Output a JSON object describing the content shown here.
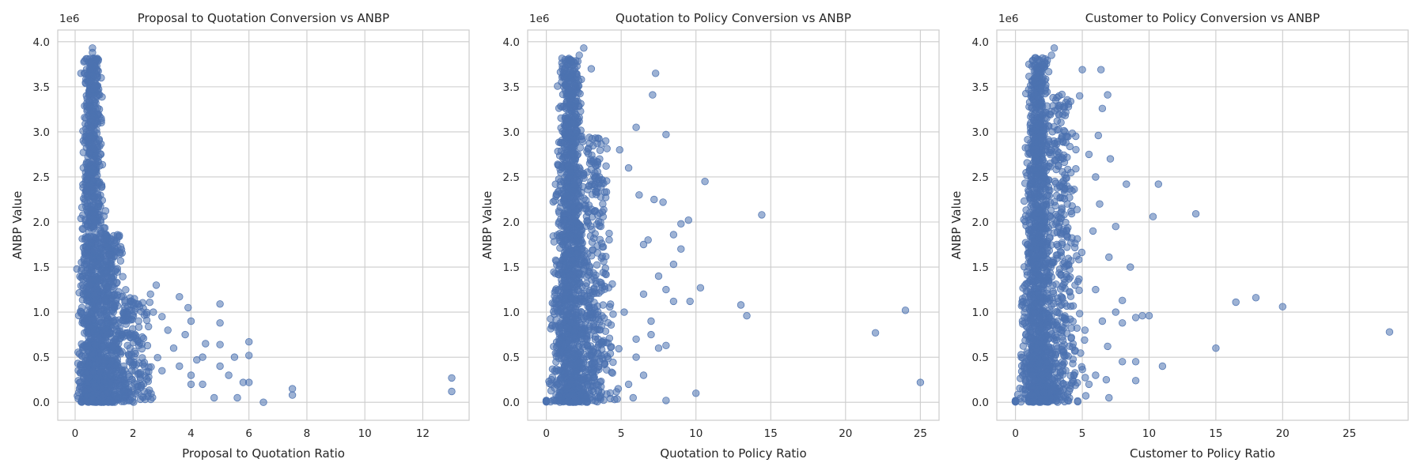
{
  "chart_data": [
    {
      "type": "scatter",
      "title": "Proposal to Quotation Conversion vs ANBP",
      "xlabel": "Proposal to Quotation Ratio",
      "ylabel": "ANBP Value",
      "y_offset_label": "1e6",
      "xlim": [
        -0.6,
        13.6
      ],
      "ylim": [
        -0.2,
        4.13
      ],
      "x_ticks": [
        0,
        2,
        4,
        6,
        8,
        10,
        12
      ],
      "y_ticks": [
        0.0,
        0.5,
        1.0,
        1.5,
        2.0,
        2.5,
        3.0,
        3.5,
        4.0
      ],
      "grid": true,
      "marker_color": "#4c72b0",
      "dense_clusters": [
        {
          "x_center": 0.6,
          "x_spread": 0.35,
          "y_max": 3.9,
          "count": 1200
        },
        {
          "x_center": 1.2,
          "x_spread": 0.5,
          "y_max": 1.9,
          "count": 500
        },
        {
          "x_center": 2.0,
          "x_spread": 0.6,
          "y_max": 1.2,
          "count": 180
        }
      ],
      "points": [
        [
          0.6,
          3.93
        ],
        [
          0.6,
          3.88
        ],
        [
          0.8,
          3.8
        ],
        [
          0.7,
          3.72
        ],
        [
          0.5,
          3.7
        ],
        [
          0.2,
          3.65
        ],
        [
          0.9,
          3.6
        ],
        [
          3.6,
          1.17
        ],
        [
          3.9,
          1.05
        ],
        [
          5.0,
          1.09
        ],
        [
          5.0,
          0.88
        ],
        [
          5.0,
          0.64
        ],
        [
          6.0,
          0.67
        ],
        [
          6.0,
          0.52
        ],
        [
          6.0,
          0.22
        ],
        [
          5.5,
          0.5
        ],
        [
          5.3,
          0.3
        ],
        [
          5.8,
          0.22
        ],
        [
          5.0,
          0.4
        ],
        [
          4.5,
          0.65
        ],
        [
          4.2,
          0.47
        ],
        [
          4.0,
          0.2
        ],
        [
          4.0,
          0.3
        ],
        [
          4.4,
          0.5
        ],
        [
          4.8,
          0.05
        ],
        [
          5.6,
          0.05
        ],
        [
          6.5,
          0.0
        ],
        [
          7.5,
          0.15
        ],
        [
          7.5,
          0.08
        ],
        [
          13.0,
          0.27
        ],
        [
          13.0,
          0.12
        ],
        [
          3.2,
          0.8
        ],
        [
          3.0,
          0.95
        ],
        [
          2.8,
          1.3
        ],
        [
          2.6,
          1.2
        ],
        [
          3.4,
          0.6
        ],
        [
          3.6,
          0.4
        ],
        [
          4.0,
          0.9
        ],
        [
          3.8,
          0.75
        ],
        [
          4.4,
          0.2
        ],
        [
          3.0,
          0.35
        ],
        [
          2.7,
          1.0
        ]
      ]
    },
    {
      "type": "scatter",
      "title": "Quotation to Policy Conversion vs ANBP",
      "xlabel": "Quotation to Policy Ratio",
      "ylabel": "ANBP Value",
      "y_offset_label": "1e6",
      "xlim": [
        -1.25,
        26.25
      ],
      "ylim": [
        -0.2,
        4.13
      ],
      "x_ticks": [
        0,
        5,
        10,
        15,
        20,
        25
      ],
      "y_ticks": [
        0.0,
        0.5,
        1.0,
        1.5,
        2.0,
        2.5,
        3.0,
        3.5,
        4.0
      ],
      "grid": true,
      "marker_color": "#4c72b0",
      "dense_clusters": [
        {
          "x_center": 1.6,
          "x_spread": 0.9,
          "y_max": 3.9,
          "count": 1400
        },
        {
          "x_center": 3.2,
          "x_spread": 1.0,
          "y_max": 3.0,
          "count": 350
        }
      ],
      "points": [
        [
          2.5,
          3.93
        ],
        [
          2.2,
          3.85
        ],
        [
          1.6,
          3.8
        ],
        [
          3.0,
          3.7
        ],
        [
          7.3,
          3.65
        ],
        [
          7.1,
          3.41
        ],
        [
          6.0,
          3.05
        ],
        [
          8.0,
          2.97
        ],
        [
          10.6,
          2.45
        ],
        [
          14.4,
          2.08
        ],
        [
          9.5,
          2.02
        ],
        [
          9.0,
          1.98
        ],
        [
          8.5,
          1.86
        ],
        [
          9.0,
          1.7
        ],
        [
          8.5,
          1.53
        ],
        [
          7.5,
          1.4
        ],
        [
          8.0,
          1.25
        ],
        [
          10.3,
          1.27
        ],
        [
          8.5,
          1.12
        ],
        [
          9.6,
          1.12
        ],
        [
          13.0,
          1.08
        ],
        [
          13.4,
          0.96
        ],
        [
          24.0,
          1.02
        ],
        [
          22.0,
          0.77
        ],
        [
          25.0,
          0.22
        ],
        [
          10.0,
          0.1
        ],
        [
          8.0,
          0.02
        ],
        [
          8.0,
          0.63
        ],
        [
          7.0,
          0.9
        ],
        [
          6.5,
          1.2
        ],
        [
          6.0,
          0.5
        ],
        [
          6.5,
          0.3
        ],
        [
          5.5,
          0.2
        ],
        [
          6.8,
          1.8
        ],
        [
          6.2,
          2.3
        ],
        [
          5.5,
          2.6
        ],
        [
          7.8,
          2.22
        ],
        [
          7.2,
          2.25
        ],
        [
          6.5,
          1.75
        ],
        [
          7.0,
          0.75
        ],
        [
          5.8,
          0.05
        ],
        [
          4.8,
          0.15
        ],
        [
          6.0,
          0.7
        ],
        [
          7.5,
          0.6
        ],
        [
          5.2,
          1.0
        ],
        [
          4.9,
          2.8
        ]
      ]
    },
    {
      "type": "scatter",
      "title": "Customer to Policy Conversion vs ANBP",
      "xlabel": "Customer to Policy Ratio",
      "ylabel": "ANBP Value",
      "y_offset_label": "1e6",
      "xlim": [
        -1.4,
        29.4
      ],
      "ylim": [
        -0.2,
        4.13
      ],
      "x_ticks": [
        0,
        5,
        10,
        15,
        20,
        25
      ],
      "y_ticks": [
        0.0,
        0.5,
        1.0,
        1.5,
        2.0,
        2.5,
        3.0,
        3.5,
        4.0
      ],
      "grid": true,
      "marker_color": "#4c72b0",
      "dense_clusters": [
        {
          "x_center": 1.7,
          "x_spread": 0.9,
          "y_max": 3.9,
          "count": 1400
        },
        {
          "x_center": 3.4,
          "x_spread": 1.2,
          "y_max": 3.5,
          "count": 380
        }
      ],
      "points": [
        [
          2.9,
          3.93
        ],
        [
          2.7,
          3.85
        ],
        [
          2.0,
          3.75
        ],
        [
          6.4,
          3.69
        ],
        [
          5.0,
          3.69
        ],
        [
          6.9,
          3.41
        ],
        [
          6.5,
          3.26
        ],
        [
          6.2,
          2.96
        ],
        [
          5.5,
          2.75
        ],
        [
          7.1,
          2.7
        ],
        [
          6.0,
          2.5
        ],
        [
          8.3,
          2.42
        ],
        [
          10.7,
          2.42
        ],
        [
          10.3,
          2.06
        ],
        [
          13.5,
          2.09
        ],
        [
          7.0,
          1.61
        ],
        [
          8.6,
          1.5
        ],
        [
          8.0,
          1.13
        ],
        [
          16.5,
          1.11
        ],
        [
          18.0,
          1.16
        ],
        [
          20.0,
          1.06
        ],
        [
          9.5,
          0.96
        ],
        [
          9.0,
          0.94
        ],
        [
          10.0,
          0.96
        ],
        [
          15.0,
          0.6
        ],
        [
          11.0,
          0.4
        ],
        [
          9.0,
          0.45
        ],
        [
          8.0,
          0.45
        ],
        [
          9.0,
          0.24
        ],
        [
          28.0,
          0.78
        ],
        [
          6.0,
          1.25
        ],
        [
          7.5,
          1.0
        ],
        [
          6.9,
          0.62
        ],
        [
          6.0,
          0.3
        ],
        [
          5.5,
          0.2
        ],
        [
          7.0,
          0.05
        ],
        [
          6.5,
          0.9
        ],
        [
          5.8,
          1.9
        ],
        [
          6.3,
          2.2
        ],
        [
          7.5,
          1.95
        ],
        [
          8.0,
          0.88
        ],
        [
          6.8,
          0.25
        ],
        [
          5.2,
          0.8
        ],
        [
          4.8,
          3.4
        ]
      ]
    }
  ]
}
